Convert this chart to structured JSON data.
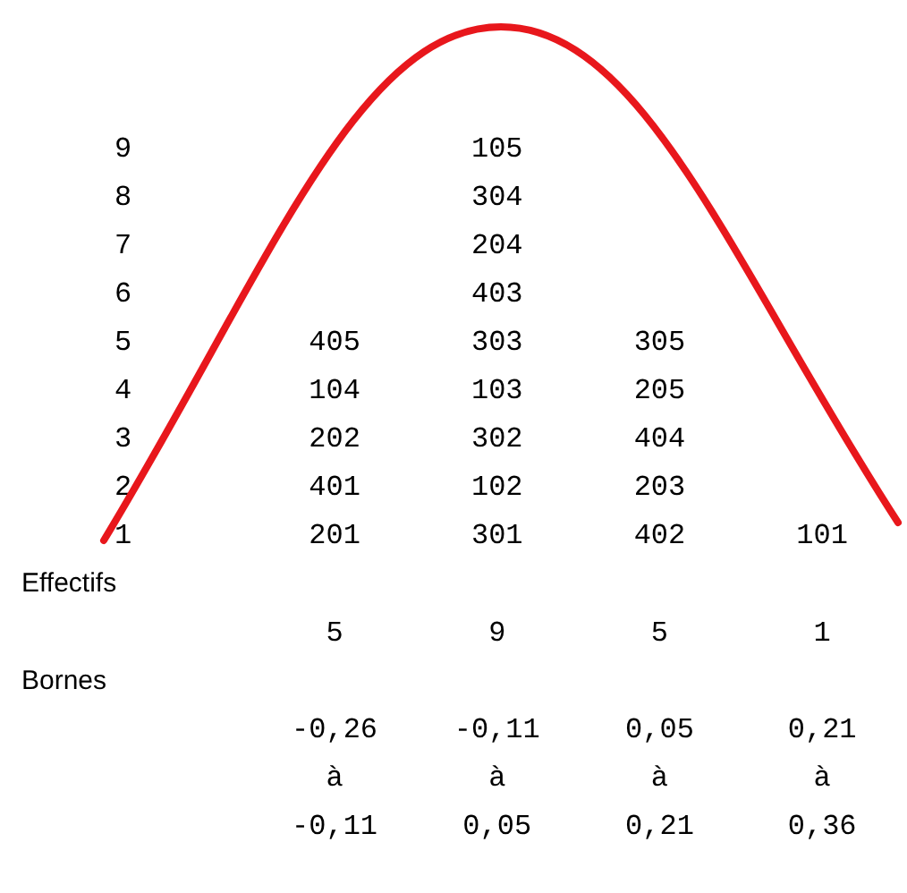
{
  "chart_data": {
    "type": "heatmap",
    "xlabel": "Bornes",
    "annotations": [
      "Effectifs"
    ],
    "categories": [
      "-0,26 à -0,11",
      "-0,11 à 0,05",
      "0,05 à 0,21",
      "0,21 à 0,36"
    ],
    "y_categories": [
      "9",
      "8",
      "7",
      "6",
      "5",
      "4",
      "3",
      "2",
      "1"
    ],
    "cells": [
      [
        null,
        105,
        null,
        null
      ],
      [
        null,
        304,
        null,
        null
      ],
      [
        null,
        204,
        null,
        null
      ],
      [
        null,
        403,
        null,
        null
      ],
      [
        405,
        303,
        305,
        null
      ],
      [
        104,
        103,
        205,
        null
      ],
      [
        202,
        302,
        404,
        null
      ],
      [
        401,
        102,
        203,
        null
      ],
      [
        201,
        301,
        402,
        101
      ]
    ],
    "totals": [
      "5",
      "9",
      "5",
      "1"
    ],
    "data_labels": true
  }
}
